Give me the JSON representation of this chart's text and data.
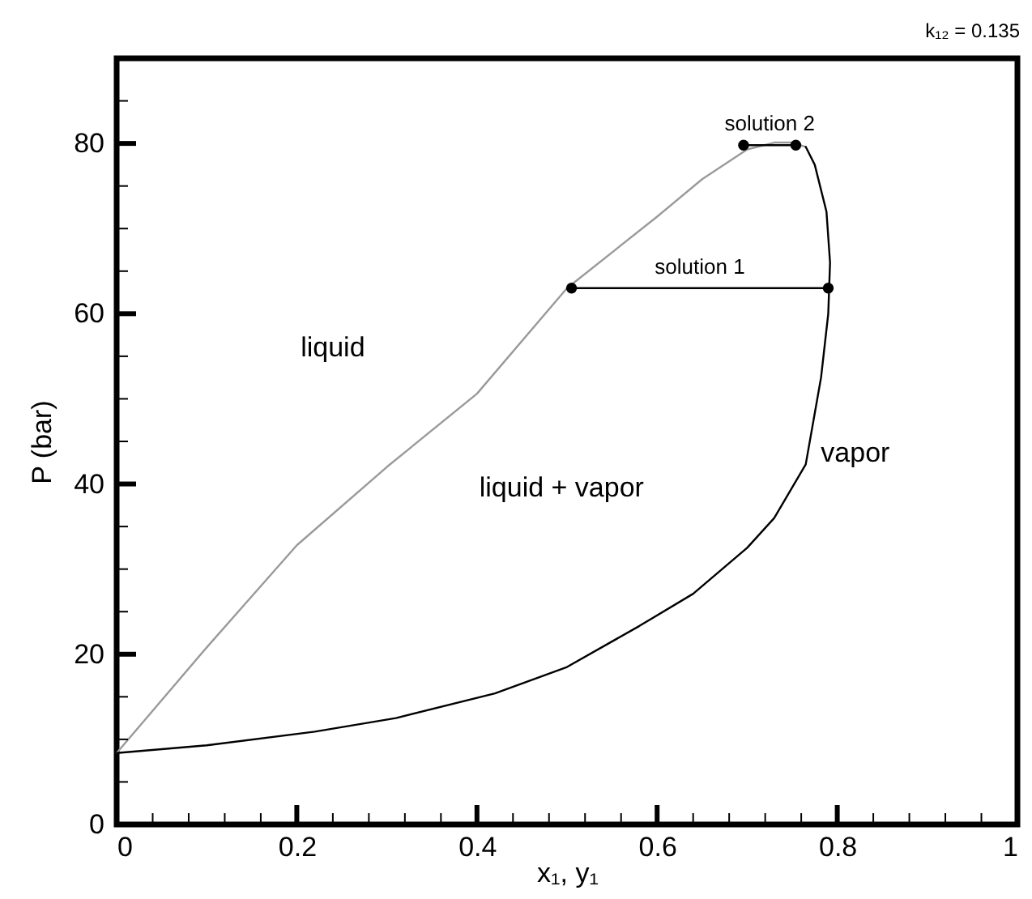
{
  "chart_data": {
    "type": "line",
    "xlabel": "x₁, y₁",
    "ylabel": "P (bar)",
    "xlim": [
      0,
      1
    ],
    "ylim": [
      0,
      90
    ],
    "xticks": [
      0,
      {
        "value": 0.04,
        "label": null
      },
      {
        "value": 0.08,
        "label": null
      },
      {
        "value": 0.12,
        "label": null
      },
      {
        "value": 0.16,
        "label": null
      },
      0.2,
      {
        "value": 0.24,
        "label": null
      },
      {
        "value": 0.28,
        "label": null
      },
      {
        "value": 0.32,
        "label": null
      },
      {
        "value": 0.36,
        "label": null
      },
      0.4,
      {
        "value": 0.44,
        "label": null
      },
      {
        "value": 0.48,
        "label": null
      },
      {
        "value": 0.52,
        "label": null
      },
      {
        "value": 0.56,
        "label": null
      },
      0.6,
      {
        "value": 0.64,
        "label": null
      },
      {
        "value": 0.68,
        "label": null
      },
      {
        "value": 0.72,
        "label": null
      },
      {
        "value": 0.76,
        "label": null
      },
      0.8,
      {
        "value": 0.84,
        "label": null
      },
      {
        "value": 0.88,
        "label": null
      },
      {
        "value": 0.92,
        "label": null
      },
      {
        "value": 0.96,
        "label": null
      },
      1
    ],
    "yticks": [
      0,
      {
        "value": 5,
        "label": null
      },
      {
        "value": 10,
        "label": null
      },
      {
        "value": 15,
        "label": null
      },
      20,
      {
        "value": 25,
        "label": null
      },
      {
        "value": 30,
        "label": null
      },
      {
        "value": 35,
        "label": null
      },
      40,
      {
        "value": 45,
        "label": null
      },
      {
        "value": 50,
        "label": null
      },
      {
        "value": 55,
        "label": null
      },
      60,
      {
        "value": 65,
        "label": null
      },
      {
        "value": 70,
        "label": null
      },
      {
        "value": 75,
        "label": null
      },
      80,
      {
        "value": 85,
        "label": null
      }
    ],
    "series": [
      {
        "color": "#9a9a9a",
        "marker": "none",
        "x": [
          0,
          0.1,
          0.2,
          0.3,
          0.4,
          0.5,
          0.6,
          0.65,
          0.7,
          0.73,
          0.75,
          0.765
        ],
        "values": [
          8.4,
          20.8,
          32.8,
          42,
          50.6,
          63,
          71.4,
          75.8,
          79.3,
          80.1,
          80.1,
          79.6
        ]
      },
      {
        "color": "#000000",
        "marker": "none",
        "x": [
          0,
          0.1,
          0.22,
          0.31,
          0.42,
          0.5,
          0.58,
          0.64,
          0.7,
          0.73,
          0.765,
          0.782,
          0.79,
          0.792,
          0.788,
          0.775,
          0.765
        ],
        "values": [
          8.4,
          9.3,
          10.9,
          12.5,
          15.4,
          18.5,
          23.3,
          27.1,
          32.5,
          36,
          42.3,
          52.5,
          60,
          66,
          72,
          77.5,
          79.6
        ]
      },
      {
        "color": "#000000",
        "marker": "circle",
        "x": [
          0.505,
          0.79
        ],
        "values": [
          63,
          63
        ]
      },
      {
        "color": "#000000",
        "marker": "circle",
        "x": [
          0.696,
          0.754
        ],
        "values": [
          79.8,
          79.8
        ]
      }
    ],
    "annotations": [
      "liquid",
      "liquid + vapor",
      "vapor",
      {
        "text": "solution 1",
        "x": 0.6475,
        "y": 63
      },
      {
        "text": "solution 2",
        "x": 0.725,
        "y": 79.8
      },
      "k₁₂ = 0.135"
    ]
  }
}
